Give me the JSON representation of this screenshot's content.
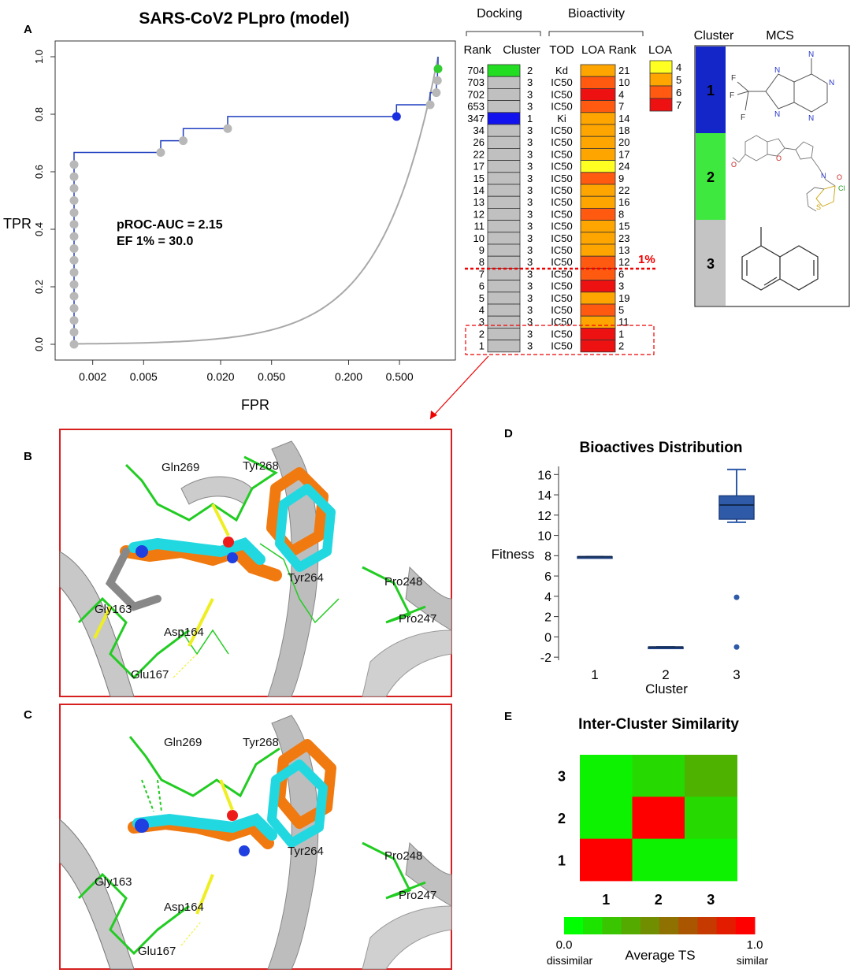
{
  "panels": {
    "A": "A",
    "B": "B",
    "C": "C",
    "D": "D",
    "E": "E"
  },
  "roc": {
    "title": "SARS-CoV2 PLpro (model)",
    "xlabel": "FPR",
    "ylabel": "TPR",
    "annotation_auc": "pROC-AUC = 2.15",
    "annotation_ef": "EF 1% = 30.0",
    "colors": {
      "curve": "#1f3fbf",
      "point": "#b8b8b8",
      "point_green": "#33cc33",
      "point_blue": "#1a2fe0",
      "random": "#a9a9a9"
    }
  },
  "table": {
    "group_docking": "Docking",
    "group_bioactivity": "Bioactivity",
    "headers": {
      "rank": "Rank",
      "cluster": "Cluster",
      "tod": "TOD",
      "loa": "LOA",
      "bio_rank": "Rank",
      "legend_loa": "LOA"
    },
    "rows": [
      {
        "rank": "704",
        "cluster": "2",
        "tod": "Kd",
        "loa": 5,
        "bio_rank": "21"
      },
      {
        "rank": "703",
        "cluster": "3",
        "tod": "IC50",
        "loa": 6,
        "bio_rank": "10"
      },
      {
        "rank": "702",
        "cluster": "3",
        "tod": "IC50",
        "loa": 7,
        "bio_rank": "4"
      },
      {
        "rank": "653",
        "cluster": "3",
        "tod": "IC50",
        "loa": 6,
        "bio_rank": "7"
      },
      {
        "rank": "347",
        "cluster": "1",
        "tod": "Ki",
        "loa": 5,
        "bio_rank": "14"
      },
      {
        "rank": "34",
        "cluster": "3",
        "tod": "IC50",
        "loa": 5,
        "bio_rank": "18"
      },
      {
        "rank": "26",
        "cluster": "3",
        "tod": "IC50",
        "loa": 5,
        "bio_rank": "20"
      },
      {
        "rank": "22",
        "cluster": "3",
        "tod": "IC50",
        "loa": 5,
        "bio_rank": "17"
      },
      {
        "rank": "17",
        "cluster": "3",
        "tod": "IC50",
        "loa": 4,
        "bio_rank": "24"
      },
      {
        "rank": "15",
        "cluster": "3",
        "tod": "IC50",
        "loa": 6,
        "bio_rank": "9"
      },
      {
        "rank": "14",
        "cluster": "3",
        "tod": "IC50",
        "loa": 5,
        "bio_rank": "22"
      },
      {
        "rank": "13",
        "cluster": "3",
        "tod": "IC50",
        "loa": 5,
        "bio_rank": "16"
      },
      {
        "rank": "12",
        "cluster": "3",
        "tod": "IC50",
        "loa": 6,
        "bio_rank": "8"
      },
      {
        "rank": "11",
        "cluster": "3",
        "tod": "IC50",
        "loa": 5,
        "bio_rank": "15"
      },
      {
        "rank": "10",
        "cluster": "3",
        "tod": "IC50",
        "loa": 5,
        "bio_rank": "23"
      },
      {
        "rank": "9",
        "cluster": "3",
        "tod": "IC50",
        "loa": 5,
        "bio_rank": "13"
      },
      {
        "rank": "8",
        "cluster": "3",
        "tod": "IC50",
        "loa": 6,
        "bio_rank": "12"
      },
      {
        "rank": "7",
        "cluster": "3",
        "tod": "IC50",
        "loa": 6,
        "bio_rank": "6"
      },
      {
        "rank": "6",
        "cluster": "3",
        "tod": "IC50",
        "loa": 7,
        "bio_rank": "3"
      },
      {
        "rank": "5",
        "cluster": "3",
        "tod": "IC50",
        "loa": 5,
        "bio_rank": "19"
      },
      {
        "rank": "4",
        "cluster": "3",
        "tod": "IC50",
        "loa": 6,
        "bio_rank": "5"
      },
      {
        "rank": "3",
        "cluster": "3",
        "tod": "IC50",
        "loa": 5,
        "bio_rank": "11"
      },
      {
        "rank": "2",
        "cluster": "3",
        "tod": "IC50",
        "loa": 7,
        "bio_rank": "1"
      },
      {
        "rank": "1",
        "cluster": "3",
        "tod": "IC50",
        "loa": 7,
        "bio_rank": "2"
      }
    ],
    "cluster_colors": {
      "1": "#1212ee",
      "2": "#22dd22",
      "3": "#c0c0c0"
    },
    "loa_legend": [
      {
        "level": "4",
        "color": "#ffff22"
      },
      {
        "level": "5",
        "color": "#ffa500"
      },
      {
        "level": "6",
        "color": "#ff5a10"
      },
      {
        "level": "7",
        "color": "#ee1111"
      }
    ],
    "cutoff_label": "1%"
  },
  "mcs": {
    "header_cluster": "Cluster",
    "header_mcs": "MCS",
    "clusters": [
      {
        "label": "1",
        "color": "#1426c8"
      },
      {
        "label": "2",
        "color": "#3ee83e"
      },
      {
        "label": "3",
        "color": "#c4c4c4"
      }
    ],
    "atoms_c1": {
      "n1": "N",
      "n2": "N",
      "n3": "N",
      "n4": "N",
      "n5": "N",
      "f1": "F",
      "f2": "F",
      "f3": "F"
    },
    "atoms_c2": {
      "o1": "O",
      "o2": "O",
      "o3": "O",
      "n1": "N",
      "cl": "Cl",
      "s": "S"
    }
  },
  "structure_b": {
    "residues": [
      "Gln269",
      "Tyr268",
      "Tyr264",
      "Pro248",
      "Pro247",
      "Gly163",
      "Asp164",
      "Glu167"
    ]
  },
  "structure_c": {
    "residues": [
      "Gln269",
      "Tyr268",
      "Tyr264",
      "Pro248",
      "Pro247",
      "Gly163",
      "Asp164",
      "Glu167"
    ]
  },
  "boxplot": {
    "title": "Bioactives Distribution",
    "ylabel": "Fitness",
    "xlabel": "Cluster",
    "color": "#2e5aa8"
  },
  "heatmap": {
    "title": "Inter-Cluster Similarity",
    "row_labels": [
      "3",
      "2",
      "1"
    ],
    "col_labels": [
      "1",
      "2",
      "3"
    ],
    "colorbar_label": "Average TS",
    "colorbar_min": "0.0",
    "colorbar_max": "1.0",
    "colorbar_min_text": "dissimilar",
    "colorbar_max_text": "similar"
  },
  "chart_data": [
    {
      "type": "line",
      "title": "SARS-CoV2 PLpro (model)",
      "xlabel": "FPR",
      "ylabel": "TPR",
      "xscale": "log",
      "xticks": [
        "0.002",
        "0.005",
        "0.020",
        "0.050",
        "0.200",
        "0.500"
      ],
      "yticks": [
        "0.0",
        "0.2",
        "0.4",
        "0.6",
        "0.8",
        "1.0"
      ],
      "xlim": [
        0.00143,
        1.0
      ],
      "ylim": [
        0,
        1
      ],
      "series": [
        {
          "points": [
            [
              0.00143,
              0.0
            ],
            [
              0.00143,
              0.625
            ],
            [
              0.00143,
              0.667
            ],
            [
              0.0068,
              0.667
            ],
            [
              0.0068,
              0.708
            ],
            [
              0.0102,
              0.708
            ],
            [
              0.0102,
              0.75
            ],
            [
              0.0227,
              0.75
            ],
            [
              0.0227,
              0.792
            ],
            [
              0.474,
              0.792
            ],
            [
              0.474,
              0.833
            ],
            [
              0.868,
              0.833
            ],
            [
              0.868,
              0.875
            ],
            [
              0.97,
              0.875
            ],
            [
              0.97,
              0.917
            ],
            [
              0.99,
              0.917
            ],
            [
              0.99,
              0.958
            ],
            [
              1.0,
              0.958
            ],
            [
              1.0,
              1.0
            ]
          ]
        }
      ],
      "markers": [
        {
          "x": 0.00143,
          "y": 0.0
        },
        {
          "x": 0.00143,
          "y": 0.042
        },
        {
          "x": 0.00143,
          "y": 0.083
        },
        {
          "x": 0.00143,
          "y": 0.125
        },
        {
          "x": 0.00143,
          "y": 0.167
        },
        {
          "x": 0.00143,
          "y": 0.208
        },
        {
          "x": 0.00143,
          "y": 0.25
        },
        {
          "x": 0.00143,
          "y": 0.292
        },
        {
          "x": 0.00143,
          "y": 0.333
        },
        {
          "x": 0.00143,
          "y": 0.375
        },
        {
          "x": 0.00143,
          "y": 0.417
        },
        {
          "x": 0.00143,
          "y": 0.458
        },
        {
          "x": 0.00143,
          "y": 0.5
        },
        {
          "x": 0.00143,
          "y": 0.542
        },
        {
          "x": 0.00143,
          "y": 0.583
        },
        {
          "x": 0.00143,
          "y": 0.625
        },
        {
          "x": 0.0068,
          "y": 0.667
        },
        {
          "x": 0.0102,
          "y": 0.708
        },
        {
          "x": 0.0227,
          "y": 0.75
        },
        {
          "x": 0.474,
          "y": 0.792,
          "cluster": "1"
        },
        {
          "x": 0.868,
          "y": 0.833
        },
        {
          "x": 0.97,
          "y": 0.875
        },
        {
          "x": 0.99,
          "y": 0.917
        },
        {
          "x": 1.0,
          "y": 0.958,
          "cluster": "2"
        }
      ]
    },
    {
      "type": "box",
      "title": "Bioactives Distribution",
      "xlabel": "Cluster",
      "ylabel": "Fitness",
      "categories": [
        "1",
        "2",
        "3"
      ],
      "yticks": [
        "-2",
        "0",
        "2",
        "4",
        "6",
        "8",
        "10",
        "12",
        "14",
        "16"
      ],
      "ylim": [
        -2.3,
        16.8
      ],
      "boxes": [
        {
          "category": "1",
          "min": 7.9,
          "q1": 7.9,
          "median": 7.9,
          "q3": 7.9,
          "max": 7.9,
          "outliers": []
        },
        {
          "category": "2",
          "min": -1.0,
          "q1": -1.0,
          "median": -1.0,
          "q3": -1.0,
          "max": -1.0,
          "outliers": []
        },
        {
          "category": "3",
          "min": 11.3,
          "q1": 11.6,
          "median": 13.0,
          "q3": 13.9,
          "max": 16.5,
          "outliers": [
            3.9,
            -1.0
          ]
        }
      ]
    },
    {
      "type": "heatmap",
      "title": "Inter-Cluster Similarity",
      "rows": [
        "3",
        "2",
        "1"
      ],
      "cols": [
        "1",
        "2",
        "3"
      ],
      "values": [
        [
          0.05,
          0.15,
          0.3
        ],
        [
          0.05,
          1.0,
          0.15
        ],
        [
          1.0,
          0.05,
          0.05
        ]
      ],
      "colorbar": {
        "min": 0.0,
        "max": 1.0,
        "label": "Average TS"
      }
    }
  ]
}
